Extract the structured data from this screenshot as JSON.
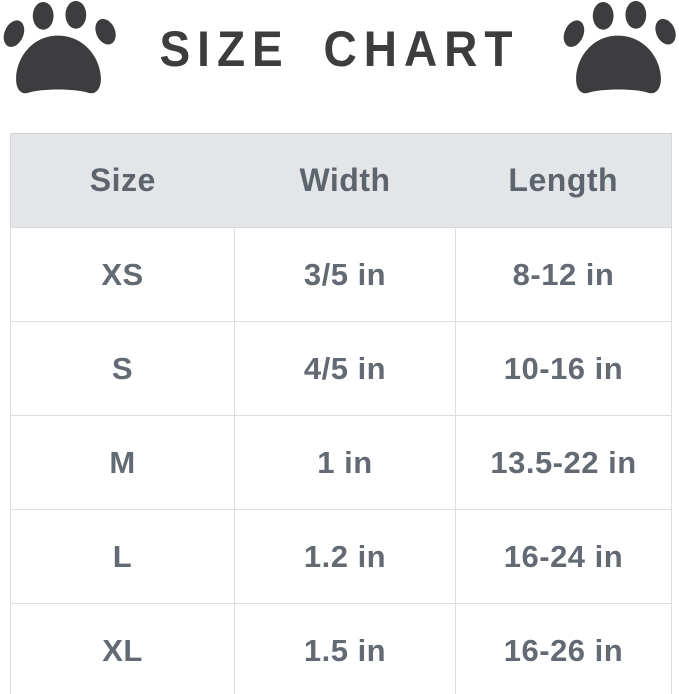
{
  "title": "SIZE CHART",
  "icons": {
    "left": "paw-icon",
    "right": "paw-icon"
  },
  "colors": {
    "ink_dark": "#3d3d3f",
    "text_gray": "#646a73",
    "header_bg": "#e3e5e8",
    "border": "#dcdee1"
  },
  "table": {
    "headers": [
      "Size",
      "Width",
      "Length"
    ],
    "row_keys": [
      "size",
      "width",
      "length"
    ],
    "rows": [
      {
        "size": "XS",
        "width": "3/5 in",
        "length": "8-12 in"
      },
      {
        "size": "S",
        "width": "4/5 in",
        "length": "10-16 in"
      },
      {
        "size": "M",
        "width": "1 in",
        "length": "13.5-22 in"
      },
      {
        "size": "L",
        "width": "1.2 in",
        "length": "16-24 in"
      },
      {
        "size": "XL",
        "width": "1.5 in",
        "length": "16-26 in"
      }
    ]
  }
}
